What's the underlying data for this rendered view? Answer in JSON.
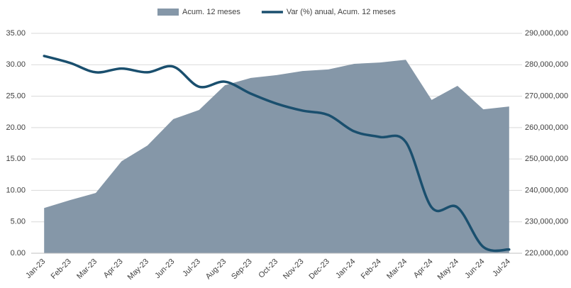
{
  "chart_data": {
    "type": "area_line",
    "categories": [
      "Jan-23",
      "Feb-23",
      "Mar-23",
      "Apr-23",
      "May-23",
      "Jun-23",
      "Jul-23",
      "Aug-23",
      "Sep-23",
      "Oct-23",
      "Nov-23",
      "Dec-23",
      "Jan-24",
      "Feb-24",
      "Mar-24",
      "Apr-24",
      "May-24",
      "Jun-24",
      "Jul-24"
    ],
    "series": [
      {
        "name": "Acum. 12 meses",
        "color": "#8597a8",
        "axis": "y2",
        "kind": "area",
        "values": [
          234400000,
          236900000,
          239200000,
          249300000,
          254300000,
          262700000,
          265600000,
          273500000,
          275800000,
          276700000,
          278000000,
          278500000,
          280300000,
          280700000,
          281600000,
          268800000,
          273300000,
          265800000,
          266700000
        ]
      },
      {
        "name": "Var (%) anual, Acum. 12 meses",
        "color": "#1a4f6e",
        "axis": "y",
        "kind": "line",
        "values": [
          31.4,
          30.3,
          28.8,
          29.4,
          28.8,
          29.7,
          26.5,
          27.3,
          25.4,
          23.8,
          22.7,
          22.0,
          19.4,
          18.5,
          17.7,
          7.3,
          7.3,
          1.0,
          0.6
        ]
      }
    ],
    "ylim": [
      0,
      35
    ],
    "yticks": [
      {
        "value": 0,
        "label": "0.00"
      },
      {
        "value": 5,
        "label": "5.00"
      },
      {
        "value": 10,
        "label": "10.00"
      },
      {
        "value": 15,
        "label": "15.00"
      },
      {
        "value": 20,
        "label": "20.00"
      },
      {
        "value": 25,
        "label": "25.00"
      },
      {
        "value": 30,
        "label": "30.00"
      },
      {
        "value": 35,
        "label": "35.00"
      }
    ],
    "y2lim": [
      220000000,
      290000000
    ],
    "y2ticks": [
      {
        "value": 220000000,
        "label": "220,000,000"
      },
      {
        "value": 230000000,
        "label": "230,000,000"
      },
      {
        "value": 240000000,
        "label": "240,000,000"
      },
      {
        "value": 250000000,
        "label": "250,000,000"
      },
      {
        "value": 260000000,
        "label": "260,000,000"
      },
      {
        "value": 270000000,
        "label": "270,000,000"
      },
      {
        "value": 280000000,
        "label": "280,000,000"
      },
      {
        "value": 290000000,
        "label": "290,000,000"
      }
    ],
    "grid": true,
    "legend": "top"
  }
}
